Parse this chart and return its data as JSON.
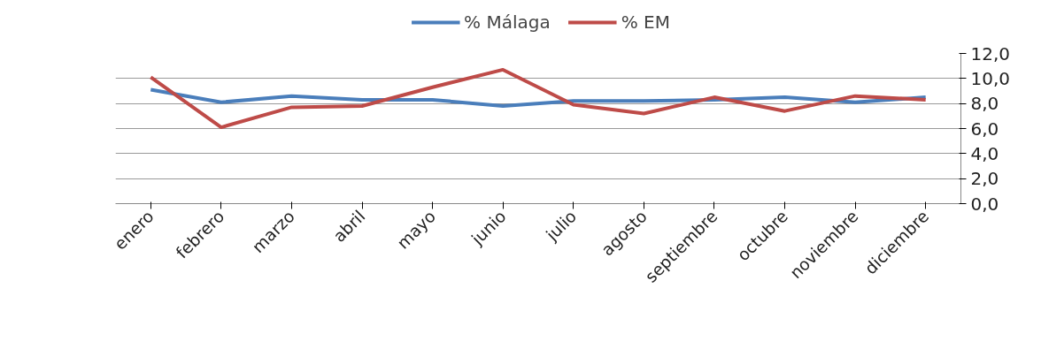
{
  "chart_data": {
    "type": "line",
    "categories": [
      "enero",
      "febrero",
      "marzo",
      "abril",
      "mayo",
      "junio",
      "julio",
      "agosto",
      "septiembre",
      "octubre",
      "noviembre",
      "diciembre"
    ],
    "series": [
      {
        "name": "% Málaga",
        "color": "#4a7ebb",
        "values": [
          9.1,
          8.1,
          8.6,
          8.3,
          8.3,
          7.8,
          8.2,
          8.2,
          8.3,
          8.5,
          8.1,
          8.5
        ]
      },
      {
        "name": "% EM",
        "color": "#be4b48",
        "values": [
          10.1,
          6.1,
          7.7,
          7.8,
          9.3,
          10.7,
          7.9,
          7.2,
          8.5,
          7.4,
          8.6,
          8.3
        ]
      }
    ],
    "ylim": [
      0,
      12
    ],
    "yticks": [
      {
        "value": 0,
        "label": "0,0"
      },
      {
        "value": 2,
        "label": "2,0"
      },
      {
        "value": 4,
        "label": "4,0"
      },
      {
        "value": 6,
        "label": "6,0"
      },
      {
        "value": 8,
        "label": "8,0"
      },
      {
        "value": 10,
        "label": "10,0"
      },
      {
        "value": 12,
        "label": "12,0"
      }
    ],
    "grid": "y",
    "legend": "top",
    "marker": "none",
    "line_style": "solid"
  }
}
